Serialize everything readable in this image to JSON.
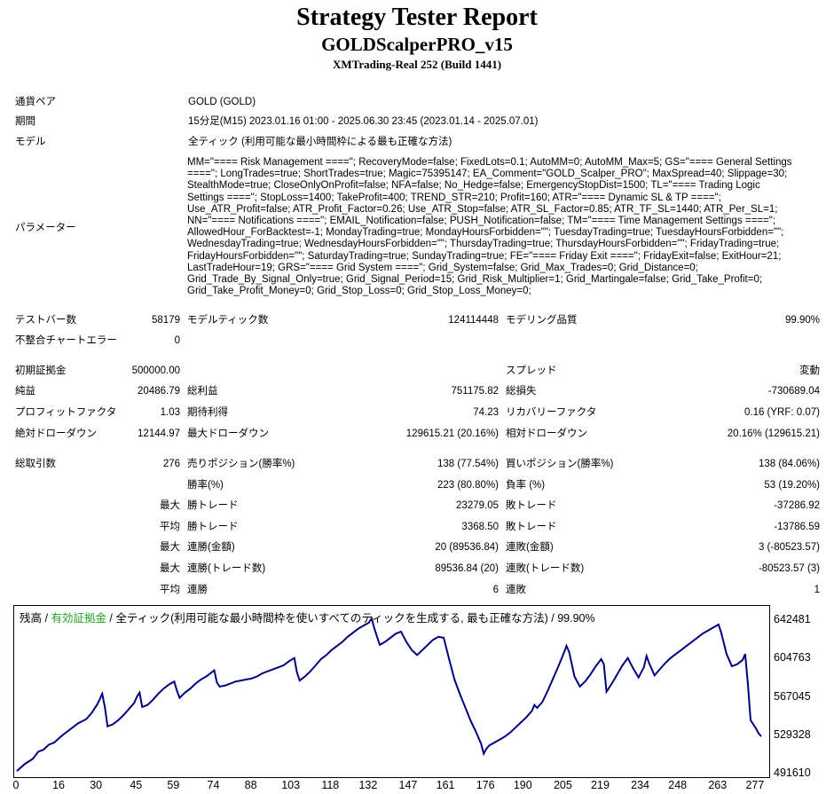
{
  "report": {
    "title": "Strategy Tester Report",
    "subtitle": "GOLDScalperPRO_v15",
    "server": "XMTrading-Real 252 (Build 1441)"
  },
  "info": {
    "symbol_label": "通貨ペア",
    "symbol_value": "GOLD (GOLD)",
    "period_label": "期間",
    "period_value": "15分足(M15) 2023.01.16 01:00 - 2025.06.30 23:45 (2023.01.14 - 2025.07.01)",
    "model_label": "モデル",
    "model_value": "全ティック (利用可能な最小時間枠による最も正確な方法)",
    "params_label": "パラメーター",
    "params_value": "MM=\"==== Risk Management ====\"; RecoveryMode=false; FixedLots=0.1; AutoMM=0; AutoMM_Max=5; GS=\"==== General Settings\n====\"; LongTrades=true; ShortTrades=true; Magic=75395147; EA_Comment=\"GOLD_Scalper_PRO\"; MaxSpread=40; Slippage=30;\nStealthMode=true; CloseOnlyOnProfit=false; NFA=false; No_Hedge=false; EmergencyStopDist=1500; TL=\"==== Trading Logic\nSettings ====\"; StopLoss=1400; TakeProfit=400; TREND_STR=210; Profit=160; ATR=\"==== Dynamic SL & TP ====\";\nUse_ATR_Profit=false; ATR_Profit_Factor=0.26; Use_ATR_Stop=false; ATR_SL_Factor=0.85; ATR_TF_SL=1440; ATR_Per_SL=1;\nNN=\"==== Notifications ====\"; EMAIL_Notification=false; PUSH_Notification=false; TM=\"==== Time Management Settings ====\";\nAllowedHour_ForBacktest=-1; MondayTrading=true; MondayHoursForbidden=\"\"; TuesdayTrading=true; TuesdayHoursForbidden=\"\";\nWednesdayTrading=true; WednesdayHoursForbidden=\"\"; ThursdayTrading=true; ThursdayHoursForbidden=\"\"; FridayTrading=true;\nFridayHoursForbidden=\"\"; SaturdayTrading=true; SundayTrading=true; FE=\"==== Friday Exit ====\"; FridayExit=false; ExitHour=21;\nLastTradeHour=19; GRS=\"==== Grid System ====\"; Grid_System=false; Grid_Max_Trades=0; Grid_Distance=0;\nGrid_Trade_By_Signal_Only=true; Grid_Signal_Period=15; Grid_Risk_Multiplier=1; Grid_Martingale=false; Grid_Take_Profit=0;\nGrid_Take_Profit_Money=0; Grid_Stop_Loss=0; Grid_Stop_Loss_Money=0;"
  },
  "stats": {
    "bars_label": "テストバー数",
    "bars_value": "58179",
    "ticks_label": "モデルティック数",
    "ticks_value": "124114448",
    "quality_label": "モデリング品質",
    "quality_value": "99.90%",
    "mismatch_label": "不整合チャートエラー",
    "mismatch_value": "0",
    "deposit_label": "初期証拠金",
    "deposit_value": "500000.00",
    "spread_label": "スプレッド",
    "spread_value": "変動",
    "netprofit_label": "純益",
    "netprofit_value": "20486.79",
    "grossprofit_label": "総利益",
    "grossprofit_value": "751175.82",
    "grossloss_label": "総損失",
    "grossloss_value": "-730689.04",
    "pf_label": "プロフィットファクタ",
    "pf_value": "1.03",
    "payoff_label": "期待利得",
    "payoff_value": "74.23",
    "recovery_label": "リカバリーファクタ",
    "recovery_value": "0.16 (YRF: 0.07)",
    "absdd_label": "絶対ドローダウン",
    "absdd_value": "12144.97",
    "maxdd_label": "最大ドローダウン",
    "maxdd_value": "129615.21 (20.16%)",
    "reldd_label": "相対ドローダウン",
    "reldd_value": "20.16% (129615.21)",
    "trades_label": "総取引数",
    "trades_value": "276",
    "short_label": "売りポジション(勝率%)",
    "short_value": "138 (77.54%)",
    "long_label": "買いポジション(勝率%)",
    "long_value": "138 (84.06%)",
    "winrate_label": "勝率(%)",
    "winrate_value": "223 (80.80%)",
    "lossrate_label": "負率 (%)",
    "lossrate_value": "53 (19.20%)",
    "max1_label": "最大",
    "maxwin_label": "勝トレード",
    "maxwin_value": "23279.05",
    "maxloss_label": "敗トレード",
    "maxloss_value": "-37286.92",
    "avg1_label": "平均",
    "avgwin_label": "勝トレード",
    "avgwin_value": "3368.50",
    "avgloss_label": "敗トレード",
    "avgloss_value": "-13786.59",
    "max2_label": "最大",
    "conswin_money_label": "連勝(金額)",
    "conswin_money_value": "20 (89536.84)",
    "consloss_money_label": "連敗(金額)",
    "consloss_money_value": "3 (-80523.57)",
    "max3_label": "最大",
    "conswin_count_label": "連勝(トレード数)",
    "conswin_count_value": "89536.84 (20)",
    "consloss_count_label": "連敗(トレード数)",
    "consloss_count_value": "-80523.57 (3)",
    "avg2_label": "平均",
    "avgconswin_label": "連勝",
    "avgconswin_value": "6",
    "avgconsloss_label": "連敗",
    "avgconsloss_value": "1"
  },
  "chart_data": {
    "type": "line",
    "legend_balance": "残高",
    "legend_sep1": " / ",
    "legend_equity": "有効証拠金",
    "legend_sep2": " / ",
    "legend_model": "全ティック(利用可能な最小時間枠を使いすべてのティックを生成する, 最も正確な方法) / 99.90%",
    "line_color": "#00007f",
    "ylim": [
      491610,
      660000
    ],
    "y_ticks": [
      "642481",
      "604763",
      "567045",
      "529328",
      "491610"
    ],
    "y_tick_values": [
      642481,
      604763,
      567045,
      529328,
      491610
    ],
    "x_ticks": [
      "0",
      "16",
      "30",
      "45",
      "59",
      "74",
      "88",
      "103",
      "118",
      "132",
      "147",
      "161",
      "176",
      "190",
      "205",
      "219",
      "234",
      "248",
      "263",
      "277"
    ],
    "x_tick_values": [
      0,
      16,
      30,
      45,
      59,
      74,
      88,
      103,
      118,
      132,
      147,
      161,
      176,
      190,
      205,
      219,
      234,
      248,
      263,
      277
    ],
    "xlim": [
      0,
      281
    ],
    "series": [
      {
        "x": [
          0,
          3,
          6,
          8,
          10,
          12,
          14,
          17,
          20,
          23,
          26,
          28,
          30,
          31,
          32,
          33,
          34,
          36,
          38,
          40,
          42,
          44,
          45,
          46,
          47,
          49,
          51,
          53,
          55,
          57,
          59,
          60,
          61,
          63,
          65,
          67,
          69,
          71,
          73,
          74,
          75,
          76,
          78,
          80,
          82,
          84,
          86,
          88,
          90,
          92,
          94,
          96,
          98,
          100,
          102,
          104,
          105,
          106,
          108,
          110,
          112,
          114,
          116,
          118,
          120,
          122,
          124,
          126,
          128,
          130,
          132,
          133,
          134,
          135,
          136,
          138,
          140,
          142,
          144,
          146,
          148,
          150,
          152,
          154,
          156,
          158,
          160,
          162,
          164,
          166,
          168,
          170,
          172,
          174,
          175,
          176,
          177,
          179,
          181,
          183,
          185,
          187,
          189,
          191,
          193,
          194,
          195,
          197,
          199,
          201,
          203,
          205,
          206,
          207,
          209,
          211,
          213,
          215,
          217,
          219,
          220,
          221,
          223,
          225,
          227,
          229,
          231,
          233,
          235,
          236,
          237,
          239,
          241,
          243,
          245,
          247,
          249,
          251,
          253,
          255,
          257,
          259,
          261,
          263,
          264,
          266,
          268,
          270,
          272,
          273,
          274,
          275,
          277,
          278,
          279
        ],
        "y": [
          495000,
          502000,
          507000,
          514000,
          516000,
          521000,
          523000,
          530000,
          536000,
          542000,
          546000,
          552000,
          560000,
          565000,
          571000,
          558000,
          539000,
          541000,
          545000,
          550000,
          556000,
          562000,
          568000,
          572000,
          558000,
          560000,
          565000,
          571000,
          576000,
          580000,
          583000,
          574000,
          567000,
          572000,
          576000,
          581000,
          585000,
          588000,
          592000,
          594000,
          582000,
          578000,
          579000,
          581000,
          583000,
          584000,
          585000,
          586000,
          588000,
          591000,
          593000,
          595000,
          597000,
          599000,
          603000,
          606000,
          592000,
          584000,
          588000,
          593000,
          599000,
          605000,
          609000,
          614000,
          618000,
          622000,
          627000,
          631000,
          635000,
          638000,
          641000,
          645000,
          635000,
          627000,
          619000,
          622000,
          626000,
          630000,
          632000,
          622000,
          614000,
          609000,
          614000,
          619000,
          624000,
          627000,
          626000,
          605000,
          585000,
          571000,
          558000,
          545000,
          534000,
          522000,
          512000,
          517000,
          520000,
          523000,
          526000,
          529000,
          533000,
          538000,
          543000,
          548000,
          554000,
          560000,
          557000,
          563000,
          574000,
          586000,
          598000,
          611000,
          618000,
          612000,
          588000,
          578000,
          583000,
          590000,
          598000,
          605000,
          600000,
          573000,
          581000,
          590000,
          599000,
          606000,
          596000,
          587000,
          597000,
          608000,
          601000,
          589000,
          595000,
          601000,
          606000,
          610000,
          614000,
          618000,
          622000,
          626000,
          630000,
          633000,
          636000,
          639000,
          631000,
          610000,
          598000,
          600000,
          604000,
          610000,
          580000,
          545000,
          537000,
          532000,
          529000
        ]
      }
    ]
  }
}
